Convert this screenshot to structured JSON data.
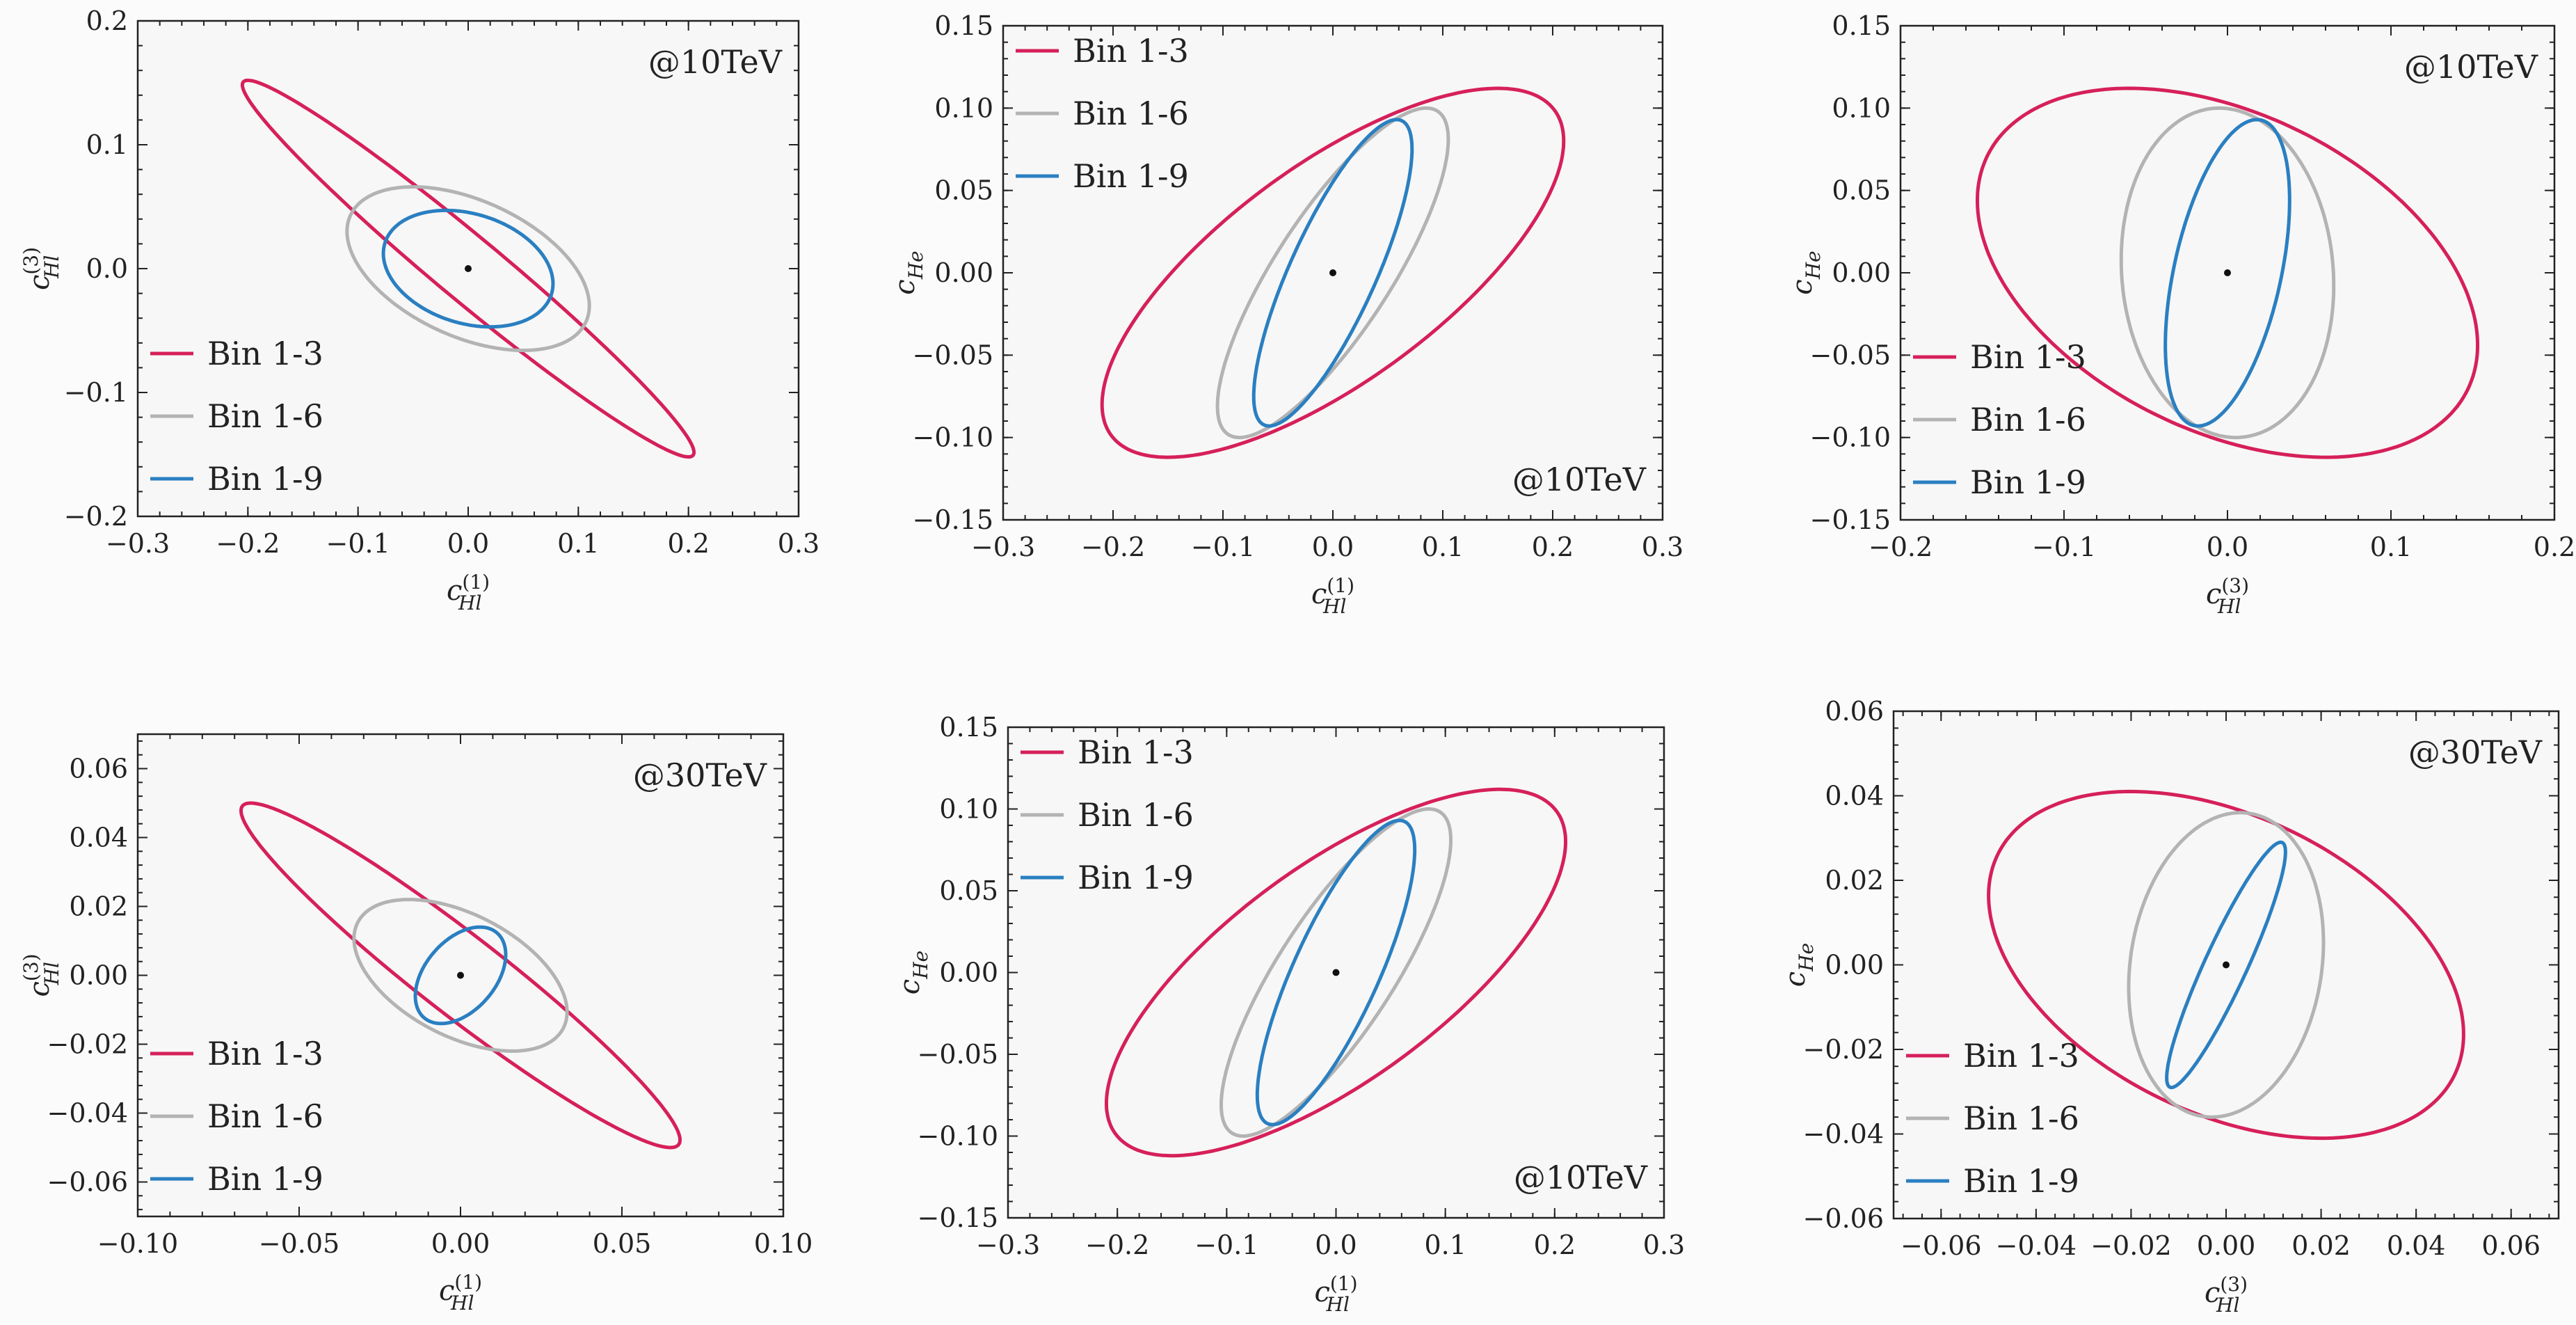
{
  "figure": {
    "background": "#fbfbfb",
    "series_colors": {
      "Bin 1-3": "#d6205a",
      "Bin 1-6": "#b3b3b3",
      "Bin 1-9": "#2a7fc1"
    }
  },
  "chart_data": [
    {
      "type": "line",
      "panel": "top-left",
      "xlabel": "c_{Hl}^{(1)}",
      "ylabel": "c_{Hl}^{(3)}",
      "xlim": [
        -0.3,
        0.3
      ],
      "ylim": [
        -0.2,
        0.2
      ],
      "xticks": [
        "−0.3",
        "−0.2",
        "−0.1",
        "0.0",
        "0.1",
        "0.2",
        "0.3"
      ],
      "yticks": [
        "−0.2",
        "−0.1",
        "0.0",
        "0.1",
        "0.2"
      ],
      "annotation": "@10TeV",
      "annotation_position": "top-right",
      "legend_position": "bottom-left",
      "center_point": [
        0,
        0
      ],
      "series": [
        {
          "name": "Bin 1-3",
          "color": "#d6205a",
          "ellipse": {
            "cx": 0,
            "cy": 0,
            "x_extent": 0.205,
            "y_extent": 0.152,
            "x_at_ymax": -0.2
          }
        },
        {
          "name": "Bin 1-6",
          "color": "#b3b3b3",
          "ellipse": {
            "cx": 0,
            "cy": 0,
            "x_extent": 0.11,
            "y_extent": 0.066,
            "x_at_ymax": -0.05
          }
        },
        {
          "name": "Bin 1-9",
          "color": "#2a7fc1",
          "ellipse": {
            "cx": 0,
            "cy": 0,
            "x_extent": 0.077,
            "y_extent": 0.047,
            "x_at_ymax": -0.02
          }
        }
      ]
    },
    {
      "type": "line",
      "panel": "top-middle",
      "xlabel": "c_{Hl}^{(1)}",
      "ylabel": "c_{He}",
      "xlim": [
        -0.3,
        0.3
      ],
      "ylim": [
        -0.15,
        0.15
      ],
      "xticks": [
        "−0.3",
        "−0.2",
        "−0.1",
        "0.0",
        "0.1",
        "0.2",
        "0.3"
      ],
      "yticks": [
        "−0.15",
        "−0.10",
        "−0.05",
        "0.00",
        "0.05",
        "0.10",
        "0.15"
      ],
      "annotation": "@10TeV",
      "annotation_position": "bottom-right",
      "legend_position": "top-left",
      "center_point": [
        0,
        0
      ],
      "series": [
        {
          "name": "Bin 1-3",
          "color": "#d6205a",
          "ellipse": {
            "cx": 0,
            "cy": 0,
            "x_extent": 0.21,
            "y_extent": 0.112,
            "x_at_ymax": 0.15
          }
        },
        {
          "name": "Bin 1-6",
          "color": "#b3b3b3",
          "ellipse": {
            "cx": 0,
            "cy": 0,
            "x_extent": 0.105,
            "y_extent": 0.1,
            "x_at_ymax": 0.085
          }
        },
        {
          "name": "Bin 1-9",
          "color": "#2a7fc1",
          "ellipse": {
            "cx": 0,
            "cy": 0,
            "x_extent": 0.072,
            "y_extent": 0.093,
            "x_at_ymax": 0.058
          }
        }
      ]
    },
    {
      "type": "line",
      "panel": "top-right",
      "xlabel": "c_{Hl}^{(3)}",
      "ylabel": "c_{He}",
      "xlim": [
        -0.2,
        0.2
      ],
      "ylim": [
        -0.15,
        0.15
      ],
      "xticks": [
        "−0.2",
        "−0.1",
        "0.0",
        "0.1",
        "0.2"
      ],
      "yticks": [
        "−0.15",
        "−0.10",
        "−0.05",
        "0.00",
        "0.05",
        "0.10",
        "0.15"
      ],
      "annotation": "@10TeV",
      "annotation_position": "top-right",
      "legend_position": "bottom-left",
      "center_point": [
        0,
        0
      ],
      "series": [
        {
          "name": "Bin 1-3",
          "color": "#d6205a",
          "ellipse": {
            "cx": 0,
            "cy": 0,
            "x_extent": 0.153,
            "y_extent": 0.112,
            "x_at_ymax": -0.06
          }
        },
        {
          "name": "Bin 1-6",
          "color": "#b3b3b3",
          "ellipse": {
            "cx": 0,
            "cy": 0,
            "x_extent": 0.065,
            "y_extent": 0.1,
            "x_at_ymax": -0.005
          }
        },
        {
          "name": "Bin 1-9",
          "color": "#2a7fc1",
          "ellipse": {
            "cx": 0,
            "cy": 0,
            "x_extent": 0.038,
            "y_extent": 0.093,
            "x_at_ymax": 0.018
          }
        }
      ]
    },
    {
      "type": "line",
      "panel": "bottom-left",
      "xlabel": "c_{Hl}^{(1)}",
      "ylabel": "c_{Hl}^{(3)}",
      "xlim": [
        -0.1,
        0.1
      ],
      "ylim": [
        -0.07,
        0.07
      ],
      "xticks": [
        "−0.10",
        "−0.05",
        "0.00",
        "0.05",
        "0.10"
      ],
      "yticks": [
        "−0.06",
        "−0.04",
        "−0.02",
        "0.00",
        "0.02",
        "0.04",
        "0.06"
      ],
      "annotation": "@30TeV",
      "annotation_position": "top-right",
      "legend_position": "bottom-left",
      "center_point": [
        0,
        0
      ],
      "series": [
        {
          "name": "Bin 1-3",
          "color": "#d6205a",
          "ellipse": {
            "cx": 0,
            "cy": 0,
            "x_extent": 0.068,
            "y_extent": 0.05,
            "x_at_ymax": -0.065
          }
        },
        {
          "name": "Bin 1-6",
          "color": "#b3b3b3",
          "ellipse": {
            "cx": 0,
            "cy": 0,
            "x_extent": 0.033,
            "y_extent": 0.022,
            "x_at_ymax": -0.016
          }
        },
        {
          "name": "Bin 1-9",
          "color": "#2a7fc1",
          "ellipse": {
            "cx": 0,
            "cy": 0,
            "x_extent": 0.014,
            "y_extent": 0.014,
            "x_at_ymax": 0.006
          }
        }
      ]
    },
    {
      "type": "line",
      "panel": "bottom-middle",
      "xlabel": "c_{Hl}^{(1)}",
      "ylabel": "c_{He}",
      "xlim": [
        -0.3,
        0.3
      ],
      "ylim": [
        -0.15,
        0.15
      ],
      "xticks": [
        "−0.3",
        "−0.2",
        "−0.1",
        "0.0",
        "0.1",
        "0.2",
        "0.3"
      ],
      "yticks": [
        "−0.15",
        "−0.10",
        "−0.05",
        "0.00",
        "0.05",
        "0.10",
        "0.15"
      ],
      "annotation": "@10TeV",
      "annotation_position": "bottom-right",
      "legend_position": "top-left",
      "center_point": [
        0,
        0
      ],
      "series": [
        {
          "name": "Bin 1-3",
          "color": "#d6205a",
          "ellipse": {
            "cx": 0,
            "cy": 0,
            "x_extent": 0.21,
            "y_extent": 0.112,
            "x_at_ymax": 0.15
          }
        },
        {
          "name": "Bin 1-6",
          "color": "#b3b3b3",
          "ellipse": {
            "cx": 0,
            "cy": 0,
            "x_extent": 0.105,
            "y_extent": 0.1,
            "x_at_ymax": 0.085
          }
        },
        {
          "name": "Bin 1-9",
          "color": "#2a7fc1",
          "ellipse": {
            "cx": 0,
            "cy": 0,
            "x_extent": 0.072,
            "y_extent": 0.093,
            "x_at_ymax": 0.058
          }
        }
      ]
    },
    {
      "type": "line",
      "panel": "bottom-right",
      "xlabel": "c_{Hl}^{(3)}",
      "ylabel": "c_{He}",
      "xlim": [
        -0.07,
        0.07
      ],
      "ylim": [
        -0.06,
        0.06
      ],
      "xticks": [
        "−0.06",
        "−0.04",
        "−0.02",
        "0.00",
        "0.02",
        "0.04",
        "0.06"
      ],
      "yticks": [
        "−0.06",
        "−0.04",
        "−0.02",
        "0.00",
        "0.02",
        "0.04",
        "0.06"
      ],
      "annotation": "@30TeV",
      "annotation_position": "top-right",
      "legend_position": "bottom-left",
      "center_point": [
        0,
        0
      ],
      "series": [
        {
          "name": "Bin 1-3",
          "color": "#d6205a",
          "ellipse": {
            "cx": 0,
            "cy": 0,
            "x_extent": 0.05,
            "y_extent": 0.041,
            "x_at_ymax": -0.02
          }
        },
        {
          "name": "Bin 1-6",
          "color": "#b3b3b3",
          "ellipse": {
            "cx": 0,
            "cy": 0,
            "x_extent": 0.0205,
            "y_extent": 0.036,
            "x_at_ymax": 0.003
          }
        },
        {
          "name": "Bin 1-9",
          "color": "#2a7fc1",
          "ellipse": {
            "cx": 0,
            "cy": 0,
            "x_extent": 0.0125,
            "y_extent": 0.029,
            "x_at_ymax": 0.0115
          }
        }
      ]
    }
  ]
}
